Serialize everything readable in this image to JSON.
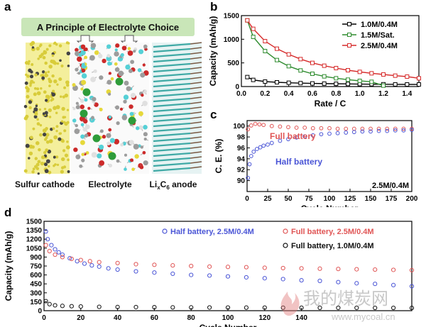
{
  "panels": {
    "a": "a",
    "b": "b",
    "c": "c",
    "d": "d"
  },
  "illustration": {
    "banner": "A Principle of Electrolyte Choice",
    "labels": {
      "cathode": "Sulfur cathode",
      "electrolyte": "Electrolyte",
      "anode_pre": "Li",
      "anode_sub1": "x",
      "anode_mid": "C",
      "anode_sub2": "6",
      "anode_post": " anode"
    },
    "colors": {
      "banner": "#c9e6b8",
      "cathode": "#d8cc3a",
      "anode": "#3fa9a5",
      "oxygen": "#cc2a2a",
      "fluorine": "#55d0d6",
      "carbon": "#9c9c9c",
      "sulfur": "#e6d83a",
      "lithium": "#2e9c3a"
    }
  },
  "chart_data": [
    {
      "panel": "b",
      "type": "line",
      "xlabel": "Rate / C",
      "ylabel": "Capacity (mAh/g)",
      "xlim": [
        0,
        1.5
      ],
      "ylim": [
        0,
        1500
      ],
      "xticks": [
        0.0,
        0.2,
        0.4,
        0.6,
        0.8,
        1.0,
        1.2,
        1.4
      ],
      "xtick_labels": [
        "0.0",
        "0.2",
        "0.4",
        "0.6",
        "0.8",
        "1.0",
        "1.2",
        "1.4"
      ],
      "yticks": [
        0,
        500,
        1000,
        1500
      ],
      "grid": false,
      "legend_position": "top-right",
      "series": [
        {
          "name": "1.0M/0.4M",
          "color": "#000000",
          "marker": "square-open",
          "x": [
            0.05,
            0.1,
            0.2,
            0.3,
            0.4,
            0.5,
            0.6,
            0.7,
            0.8,
            0.9,
            1.0,
            1.1,
            1.2,
            1.3,
            1.4,
            1.5
          ],
          "y": [
            200,
            140,
            105,
            90,
            80,
            72,
            66,
            62,
            58,
            55,
            52,
            50,
            48,
            46,
            45,
            44
          ]
        },
        {
          "name": "1.5M/Sat.",
          "color": "#2e8b2e",
          "marker": "square-open",
          "x": [
            0.05,
            0.1,
            0.2,
            0.3,
            0.4,
            0.5,
            0.6,
            0.7,
            0.8,
            0.9,
            1.0,
            1.1,
            1.2
          ],
          "y": [
            1400,
            1050,
            750,
            560,
            430,
            340,
            270,
            215,
            175,
            145,
            120,
            100,
            20
          ]
        },
        {
          "name": "2.5M/0.4M",
          "color": "#d62a2a",
          "marker": "square-open",
          "x": [
            0.05,
            0.1,
            0.2,
            0.3,
            0.4,
            0.5,
            0.6,
            0.7,
            0.8,
            0.9,
            1.0,
            1.1,
            1.2,
            1.3,
            1.4,
            1.5
          ],
          "y": [
            1400,
            1220,
            960,
            800,
            680,
            580,
            500,
            440,
            390,
            345,
            310,
            280,
            255,
            230,
            210,
            175
          ]
        }
      ]
    },
    {
      "panel": "c",
      "type": "scatter",
      "xlabel": "Cycle Number",
      "ylabel": "C. E. (%)",
      "xlim": [
        0,
        200
      ],
      "ylim": [
        88,
        101
      ],
      "xticks": [
        0,
        25,
        50,
        75,
        100,
        125,
        150,
        175,
        200
      ],
      "yticks": [
        90,
        92,
        94,
        96,
        98,
        100
      ],
      "grid": false,
      "series": [
        {
          "name": "Full battery",
          "color": "#e05555",
          "marker": "circle-open",
          "x": [
            1,
            5,
            10,
            15,
            20,
            30,
            40,
            50,
            60,
            70,
            80,
            90,
            100,
            110,
            120,
            130,
            140,
            150,
            160,
            170,
            180,
            190,
            200
          ],
          "y": [
            99.4,
            100.1,
            100.4,
            100.3,
            100.2,
            100.0,
            99.9,
            99.8,
            99.7,
            99.7,
            99.6,
            99.6,
            99.6,
            99.5,
            99.5,
            99.5,
            99.5,
            99.5,
            99.5,
            99.5,
            99.5,
            99.5,
            99.5
          ]
        },
        {
          "name": "Half battery",
          "color": "#4a55d6",
          "marker": "circle-open",
          "x": [
            1,
            3,
            5,
            8,
            12,
            16,
            20,
            25,
            30,
            40,
            50,
            60,
            70,
            80,
            90,
            100,
            110,
            120,
            130,
            140,
            150,
            160,
            170,
            180,
            190,
            200
          ],
          "y": [
            90.5,
            93.0,
            94.5,
            95.3,
            95.8,
            96.1,
            96.4,
            96.6,
            96.9,
            97.3,
            97.6,
            97.9,
            98.1,
            98.3,
            98.5,
            98.6,
            98.7,
            98.8,
            98.9,
            99.0,
            99.0,
            99.1,
            99.1,
            99.2,
            99.2,
            99.3
          ]
        }
      ],
      "annotations": {
        "full": "Full battery",
        "half": "Half battery",
        "corner": "2.5M/0.4M"
      }
    },
    {
      "panel": "d",
      "type": "scatter",
      "xlabel": "Cycle Number",
      "ylabel": "Capacity (mAh/g)",
      "xlim": [
        0,
        200
      ],
      "ylim": [
        0,
        1500
      ],
      "xticks": [
        0,
        20,
        40,
        60,
        80,
        100,
        120,
        140
      ],
      "xtick_labels": [
        "0",
        "20",
        "40",
        "60",
        "80",
        "100",
        "120",
        "140"
      ],
      "yticks": [
        0,
        150,
        300,
        450,
        600,
        750,
        900,
        1050,
        1200,
        1350,
        1500
      ],
      "grid": false,
      "legend_position": "top",
      "series": [
        {
          "name": "Half battery, 2.5M/0.4M",
          "color": "#4a55d6",
          "marker": "circle-open",
          "x": [
            1,
            2,
            4,
            6,
            8,
            10,
            14,
            18,
            22,
            26,
            30,
            35,
            40,
            50,
            60,
            70,
            80,
            90,
            100,
            110,
            120,
            130,
            140,
            150,
            160,
            170,
            180,
            190,
            200
          ],
          "y": [
            1330,
            1200,
            1100,
            1030,
            980,
            940,
            880,
            830,
            790,
            760,
            740,
            710,
            690,
            660,
            640,
            620,
            600,
            590,
            575,
            560,
            545,
            530,
            510,
            500,
            480,
            460,
            450,
            430,
            410
          ]
        },
        {
          "name": "Full battery, 2.5M/0.4M",
          "color": "#e05555",
          "marker": "circle-open",
          "x": [
            1,
            3,
            6,
            10,
            15,
            20,
            25,
            30,
            40,
            50,
            60,
            70,
            80,
            90,
            100,
            110,
            120,
            130,
            140,
            150,
            160,
            170,
            180,
            190,
            200
          ],
          "y": [
            1100,
            1000,
            940,
            900,
            870,
            850,
            830,
            815,
            800,
            780,
            770,
            760,
            750,
            740,
            735,
            730,
            720,
            715,
            710,
            705,
            700,
            695,
            690,
            685,
            680
          ]
        },
        {
          "name": "Full battery, 1.0M/0.4M",
          "color": "#111111",
          "marker": "circle-open",
          "x": [
            1,
            3,
            6,
            10,
            15,
            20,
            30,
            40,
            50,
            60,
            70,
            80,
            90,
            100,
            110,
            120,
            130,
            140,
            150,
            160,
            170,
            180,
            190,
            200
          ],
          "y": [
            160,
            110,
            90,
            80,
            75,
            70,
            65,
            62,
            60,
            58,
            56,
            55,
            54,
            53,
            52,
            51,
            50,
            50,
            49,
            48,
            48,
            47,
            47,
            46
          ]
        }
      ]
    }
  ],
  "watermark": {
    "text": "我的煤炭网",
    "url": "www.mycoal.cn"
  }
}
